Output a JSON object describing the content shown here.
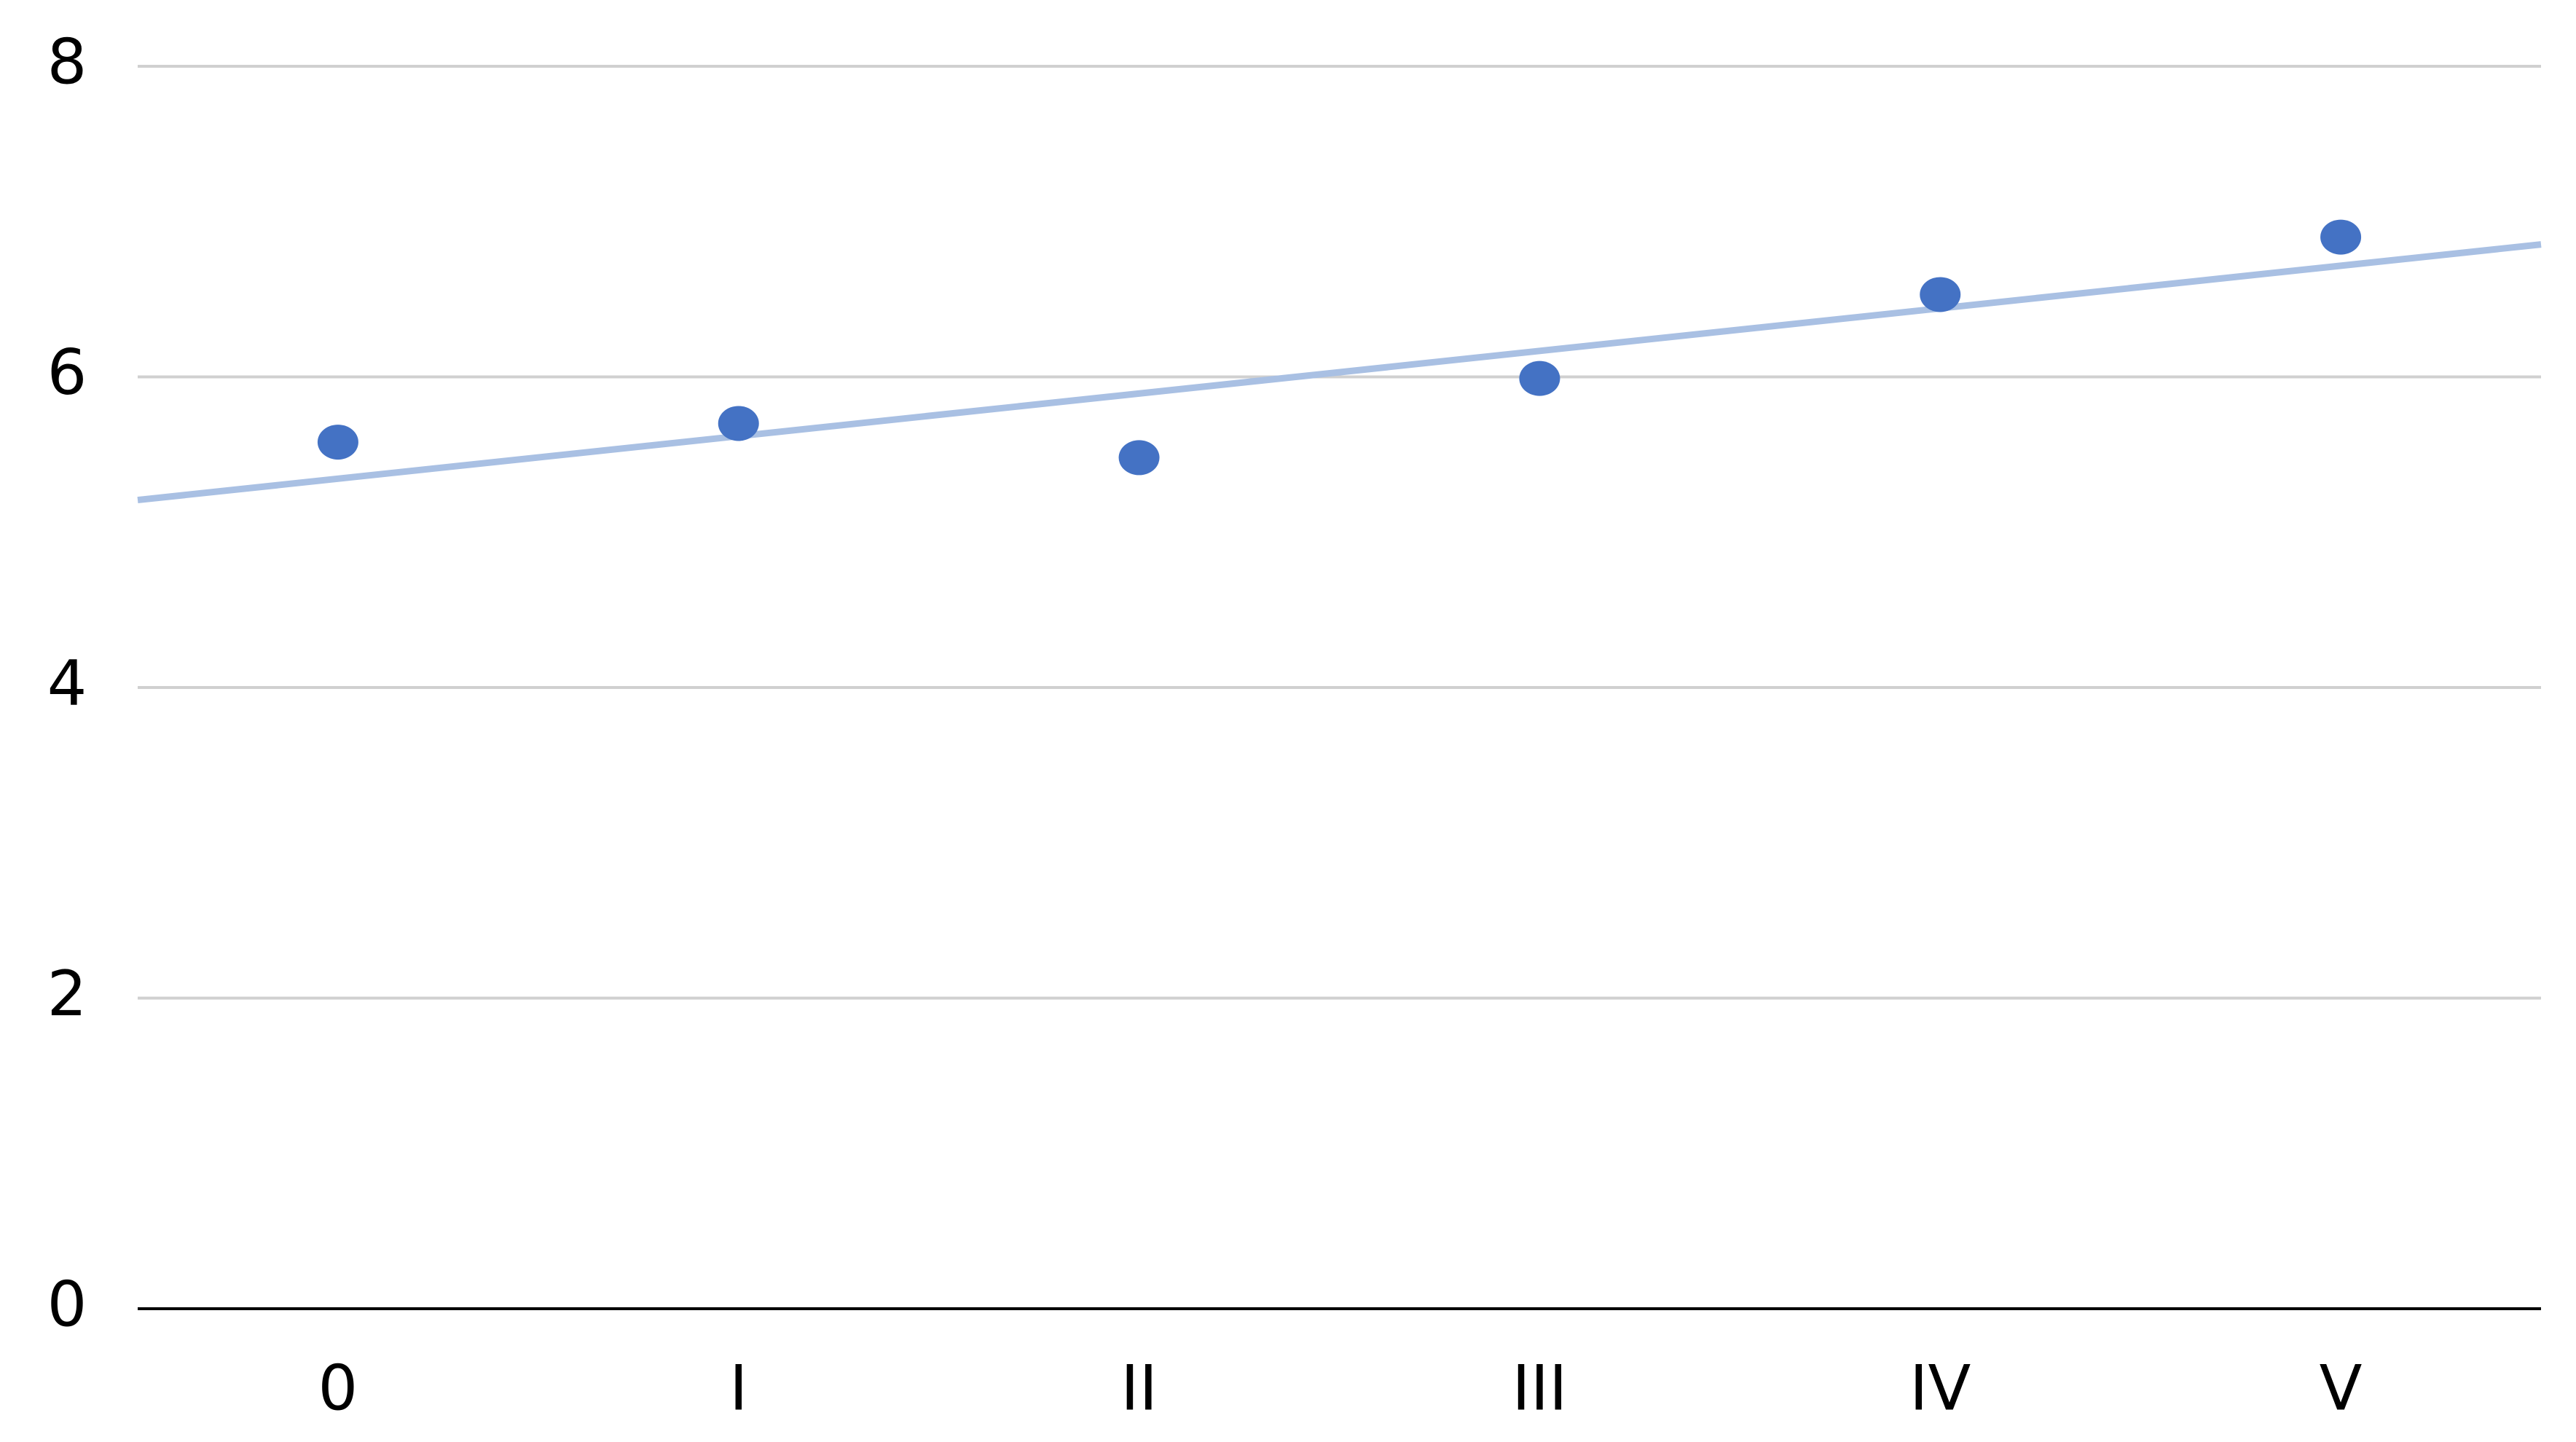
{
  "chart_data": {
    "type": "scatter",
    "categories": [
      "0",
      "I",
      "II",
      "III",
      "IV",
      "V"
    ],
    "values": [
      5.58,
      5.7,
      5.48,
      5.99,
      6.53,
      6.9
    ],
    "color": "#4472c4",
    "trendline": true,
    "trendline_color": "#a9c0e3",
    "ylim": [
      0,
      8
    ],
    "yticks": [
      0,
      2,
      4,
      6,
      8
    ],
    "grid": true
  }
}
